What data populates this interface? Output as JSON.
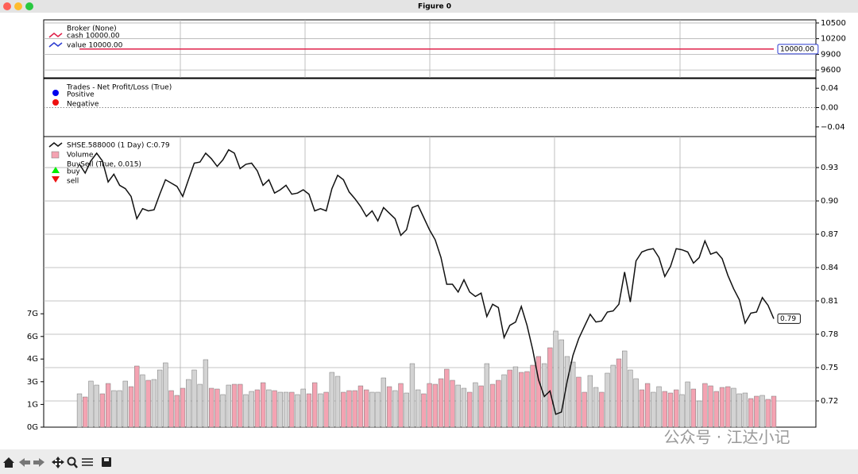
{
  "window_title": "Figure 0",
  "watermark": "公众号 · 江达小记",
  "chart_data": [
    {
      "type": "line",
      "legend_title": "Broker (None)",
      "ylim": [
        9450,
        10560
      ],
      "yticks": [
        10500,
        10200,
        9900,
        9600
      ],
      "grid": true,
      "series": [
        {
          "name": "cash 10000.00",
          "color": "#e0204a",
          "values": [
            10000,
            10000,
            10000,
            10000,
            10000,
            10000,
            10000,
            10000,
            10000,
            10000,
            10000,
            10000,
            10000,
            10000,
            10000,
            10000,
            10000,
            10000,
            10000,
            10000,
            10000,
            10000,
            10000,
            10000,
            10000,
            10000,
            10000,
            10000,
            10000,
            10000,
            10000,
            10000,
            10000,
            10000,
            10000,
            10000,
            10000,
            10000,
            10000,
            10000,
            10000,
            10000,
            10000,
            10000,
            10000,
            10000,
            10000,
            10000,
            10000,
            10000,
            10000,
            10000,
            10000,
            10000,
            10000,
            10000,
            10000,
            10000,
            10000,
            10000,
            10000,
            10000,
            10000,
            10000,
            10000,
            10000,
            10000,
            10000,
            10000,
            10000,
            10000,
            10000,
            10000,
            10000,
            10000,
            10000,
            10000,
            10000,
            10000,
            10000,
            10000,
            10000,
            10000,
            10000,
            10000,
            10000,
            10000,
            10000,
            10000,
            10000,
            10000,
            10000,
            10000,
            10000,
            10000,
            10000,
            10000,
            10000,
            10000,
            10000,
            10000,
            10000,
            10000,
            10000,
            10000,
            10000,
            10000,
            10000,
            10000,
            10000,
            10000,
            10000,
            10000,
            10000,
            10000,
            10000,
            10000,
            10000,
            10000,
            10000,
            10000,
            10000
          ]
        },
        {
          "name": "value 10000.00",
          "color": "#2b3bd0",
          "values": [
            10000,
            10000,
            10000,
            10000,
            10000,
            10000,
            10000,
            10000,
            10000,
            10000,
            10000,
            10000,
            10000,
            10000,
            10000,
            10000,
            10000,
            10000,
            10000,
            10000,
            10000,
            10000,
            10000,
            10000,
            10000,
            10000,
            10000,
            10000,
            10000,
            10000,
            10000,
            10000,
            10000,
            10000,
            10000,
            10000,
            10000,
            10000,
            10000,
            10000,
            10000,
            10000,
            10000,
            10000,
            10000,
            10000,
            10000,
            10000,
            10000,
            10000,
            10000,
            10000,
            10000,
            10000,
            10000,
            10000,
            10000,
            10000,
            10000,
            10000,
            10000,
            10000,
            10000,
            10000,
            10000,
            10000,
            10000,
            10000,
            10000,
            10000,
            10000,
            10000,
            10000,
            10000,
            10000,
            10000,
            10000,
            10000,
            10000,
            10000,
            10000,
            10000,
            10000,
            10000,
            10000,
            10000,
            10000,
            10000,
            10000,
            10000,
            10000,
            10000,
            10000,
            10000,
            10000,
            10000,
            10000,
            10000,
            10000,
            10000,
            10000,
            10000,
            10000,
            10000,
            10000,
            10000,
            10000,
            10000,
            10000,
            10000,
            10000,
            10000,
            10000,
            10000,
            10000,
            10000,
            10000,
            10000,
            10000,
            10000,
            10000,
            10000
          ],
          "value_labels": [
            null,
            null,
            null,
            null,
            null,
            null,
            null,
            null,
            null,
            null,
            null,
            null,
            null,
            null,
            null,
            null,
            null,
            null,
            null,
            null,
            null,
            null,
            null,
            null,
            null,
            null,
            null,
            null,
            null,
            null,
            null,
            null,
            null,
            null,
            null,
            null,
            null,
            null,
            null,
            null,
            null,
            null,
            null,
            null,
            null,
            null,
            null,
            null,
            null,
            null,
            null,
            null,
            null,
            null,
            null,
            null,
            null,
            null,
            null,
            null,
            null,
            null,
            null,
            null,
            null,
            null,
            null,
            null,
            null,
            null,
            null,
            null,
            null,
            null,
            null,
            null,
            null,
            null,
            null,
            null,
            null,
            null,
            null,
            null,
            null,
            null,
            null,
            null,
            null,
            null,
            null,
            null,
            null,
            null,
            null,
            null,
            null,
            null,
            null,
            null,
            null,
            null,
            null,
            null,
            null,
            null,
            null,
            null,
            null,
            null,
            null,
            null,
            null,
            null,
            null,
            null,
            null,
            null,
            null,
            null,
            null,
            "10000.00"
          ]
        }
      ]
    },
    {
      "type": "scatter",
      "legend_title": "Trades - Net Profit/Loss (True)",
      "ylim": [
        -0.06,
        0.06
      ],
      "yticks": [
        0.04,
        {
          "value": 0,
          "label": "0.00"
        },
        {
          "value": -0.04,
          "label": "−0.04"
        }
      ],
      "grid": false,
      "hline": 0,
      "series": [
        {
          "name": "Positive",
          "color": "#0000ee",
          "values": []
        },
        {
          "name": "Negative",
          "color": "#ee1111",
          "values": []
        }
      ]
    },
    {
      "type": "line",
      "ylim": [
        0.6964,
        0.9579
      ],
      "yticks": [
        0.93,
        {
          "value": 0.9,
          "label": "0.90"
        },
        0.87,
        0.84,
        0.81,
        0.78,
        0.75,
        0.72
      ],
      "y2lim": [
        0,
        18.3
      ],
      "y2ticks": [
        {
          "value": 0,
          "label": "0G"
        },
        {
          "value": 1.43,
          "label": "1G"
        },
        {
          "value": 2.86,
          "label": "3G"
        },
        {
          "value": 4.29,
          "label": "4G"
        },
        {
          "value": 5.71,
          "label": "6G"
        },
        {
          "value": 7.14,
          "label": "7G"
        }
      ],
      "grid": true,
      "legend_title2": "BuySell (True, 0.015)",
      "markers": [
        {
          "name": "buy",
          "color": "#00ee00",
          "marker": "^"
        },
        {
          "name": "sell",
          "color": "#ee1111",
          "marker": "v"
        }
      ],
      "series": [
        {
          "name": "SHSE.588000 (1 Day) C:0.79",
          "color": "#111111",
          "values": [
            0.933,
            0.925,
            0.936,
            0.943,
            0.936,
            0.917,
            0.924,
            0.914,
            0.911,
            0.904,
            0.884,
            0.893,
            0.891,
            0.892,
            0.906,
            0.919,
            0.916,
            0.913,
            0.904,
            0.919,
            0.934,
            0.935,
            0.943,
            0.938,
            0.931,
            0.937,
            0.946,
            0.943,
            0.929,
            0.933,
            0.934,
            0.927,
            0.914,
            0.919,
            0.907,
            0.91,
            0.914,
            0.906,
            0.907,
            0.91,
            0.906,
            0.891,
            0.893,
            0.891,
            0.911,
            0.923,
            0.919,
            0.908,
            0.902,
            0.895,
            0.886,
            0.891,
            0.882,
            0.894,
            0.889,
            0.884,
            0.869,
            0.874,
            0.894,
            0.896,
            0.885,
            0.874,
            0.865,
            0.849,
            0.825,
            0.825,
            0.818,
            0.829,
            0.818,
            0.814,
            0.817,
            0.796,
            0.807,
            0.804,
            0.777,
            0.788,
            0.791,
            0.805,
            0.788,
            0.766,
            0.739,
            0.724,
            0.729,
            0.708,
            0.71,
            0.738,
            0.761,
            0.776,
            0.787,
            0.798,
            0.791,
            0.792,
            0.8,
            0.801,
            0.807,
            0.836,
            0.809,
            0.846,
            0.854,
            0.856,
            0.857,
            0.849,
            0.832,
            0.841,
            0.857,
            0.856,
            0.854,
            0.844,
            0.849,
            0.864,
            0.852,
            0.854,
            0.848,
            0.833,
            0.821,
            0.811,
            0.79,
            0.799,
            0.8,
            0.813,
            0.806,
            0.794
          ],
          "value_labels": [
            null,
            null,
            null,
            null,
            null,
            null,
            null,
            null,
            null,
            null,
            null,
            null,
            null,
            null,
            null,
            null,
            null,
            null,
            null,
            null,
            null,
            null,
            null,
            null,
            null,
            null,
            null,
            null,
            null,
            null,
            null,
            null,
            null,
            null,
            null,
            null,
            null,
            null,
            null,
            null,
            null,
            null,
            null,
            null,
            null,
            null,
            null,
            null,
            null,
            null,
            null,
            null,
            null,
            null,
            null,
            null,
            null,
            null,
            null,
            null,
            null,
            null,
            null,
            null,
            null,
            null,
            null,
            null,
            null,
            null,
            null,
            null,
            null,
            null,
            null,
            null,
            null,
            null,
            null,
            null,
            null,
            null,
            null,
            null,
            null,
            null,
            null,
            null,
            null,
            null,
            null,
            null,
            null,
            null,
            null,
            null,
            null,
            null,
            null,
            null,
            null,
            null,
            null,
            null,
            null,
            null,
            null,
            null,
            null,
            null,
            null,
            null,
            null,
            null,
            null,
            null,
            null,
            null,
            null,
            null,
            null,
            "0.79"
          ]
        },
        {
          "name": "Volume",
          "type": "bar",
          "axis": "y2",
          "color": "#f4a3b2",
          "values": [
            2.1,
            1.9,
            2.9,
            2.65,
            2.1,
            2.75,
            2.3,
            2.3,
            2.9,
            2.55,
            3.85,
            3.3,
            2.95,
            3.0,
            3.6,
            4.05,
            2.3,
            2.0,
            2.45,
            3.0,
            3.6,
            2.7,
            4.25,
            2.45,
            2.4,
            2.05,
            2.65,
            2.7,
            2.7,
            2.05,
            2.25,
            2.35,
            2.8,
            2.35,
            2.3,
            2.2,
            2.2,
            2.2,
            2.05,
            2.4,
            2.1,
            2.8,
            2.1,
            2.2,
            3.45,
            3.2,
            2.2,
            2.3,
            2.3,
            2.6,
            2.35,
            2.2,
            2.2,
            3.1,
            2.55,
            2.3,
            2.75,
            2.15,
            4.0,
            2.35,
            2.1,
            2.75,
            2.7,
            3.05,
            3.65,
            2.95,
            2.65,
            2.45,
            2.2,
            2.8,
            2.6,
            4.0,
            2.7,
            2.95,
            3.3,
            3.6,
            3.8,
            3.45,
            3.5,
            3.9,
            4.45,
            4.0,
            5.0,
            6.05,
            5.5,
            4.45,
            4.1,
            3.15,
            2.2,
            3.25,
            2.5,
            2.2,
            3.4,
            3.9,
            4.3,
            4.8,
            3.6,
            3.05,
            2.35,
            2.75,
            2.2,
            2.55,
            2.25,
            2.15,
            2.35,
            2.05,
            2.85,
            2.4,
            1.65,
            2.75,
            2.6,
            2.25,
            2.5,
            2.55,
            2.45,
            2.1,
            2.15,
            1.8,
            1.95,
            2.0,
            1.75,
            1.95
          ],
          "colors": [
            "#d3d3d3",
            "#f4a3b2",
            "#d3d3d3",
            "#d3d3d3",
            "#f4a3b2",
            "#f4a3b2",
            "#d3d3d3",
            "#d3d3d3",
            "#d3d3d3",
            "#f4a3b2",
            "#f4a3b2",
            "#d3d3d3",
            "#f4a3b2",
            "#d3d3d3",
            "#d3d3d3",
            "#d3d3d3",
            "#f4a3b2",
            "#f4a3b2",
            "#f4a3b2",
            "#d3d3d3",
            "#d3d3d3",
            "#d3d3d3",
            "#d3d3d3",
            "#f4a3b2",
            "#f4a3b2",
            "#d3d3d3",
            "#d3d3d3",
            "#f4a3b2",
            "#f4a3b2",
            "#d3d3d3",
            "#d3d3d3",
            "#f4a3b2",
            "#f4a3b2",
            "#d3d3d3",
            "#f4a3b2",
            "#d3d3d3",
            "#d3d3d3",
            "#f4a3b2",
            "#d3d3d3",
            "#d3d3d3",
            "#f4a3b2",
            "#f4a3b2",
            "#d3d3d3",
            "#f4a3b2",
            "#d3d3d3",
            "#d3d3d3",
            "#f4a3b2",
            "#f4a3b2",
            "#f4a3b2",
            "#f4a3b2",
            "#f4a3b2",
            "#d3d3d3",
            "#d3d3d3",
            "#d3d3d3",
            "#f4a3b2",
            "#d3d3d3",
            "#f4a3b2",
            "#d3d3d3",
            "#d3d3d3",
            "#d3d3d3",
            "#f4a3b2",
            "#f4a3b2",
            "#f4a3b2",
            "#f4a3b2",
            "#f4a3b2",
            "#f4a3b2",
            "#d3d3d3",
            "#d3d3d3",
            "#f4a3b2",
            "#d3d3d3",
            "#f4a3b2",
            "#d3d3d3",
            "#f4a3b2",
            "#f4a3b2",
            "#d3d3d3",
            "#f4a3b2",
            "#d3d3d3",
            "#f4a3b2",
            "#f4a3b2",
            "#f4a3b2",
            "#f4a3b2",
            "#d3d3d3",
            "#f4a3b2",
            "#d3d3d3",
            "#d3d3d3",
            "#d3d3d3",
            "#d3d3d3",
            "#f4a3b2",
            "#f4a3b2",
            "#d3d3d3",
            "#d3d3d3",
            "#f4a3b2",
            "#d3d3d3",
            "#d3d3d3",
            "#f4a3b2",
            "#d3d3d3",
            "#d3d3d3",
            "#d3d3d3",
            "#f4a3b2",
            "#f4a3b2",
            "#d3d3d3",
            "#d3d3d3",
            "#f4a3b2",
            "#f4a3b2",
            "#f4a3b2",
            "#d3d3d3",
            "#d3d3d3",
            "#f4a3b2",
            "#d3d3d3",
            "#f4a3b2",
            "#f4a3b2",
            "#f4a3b2",
            "#f4a3b2",
            "#f4a3b2",
            "#d3d3d3",
            "#d3d3d3",
            "#d3d3d3",
            "#f4a3b2",
            "#f4a3b2",
            "#d3d3d3",
            "#f4a3b2",
            "#f4a3b2"
          ]
        }
      ]
    }
  ]
}
